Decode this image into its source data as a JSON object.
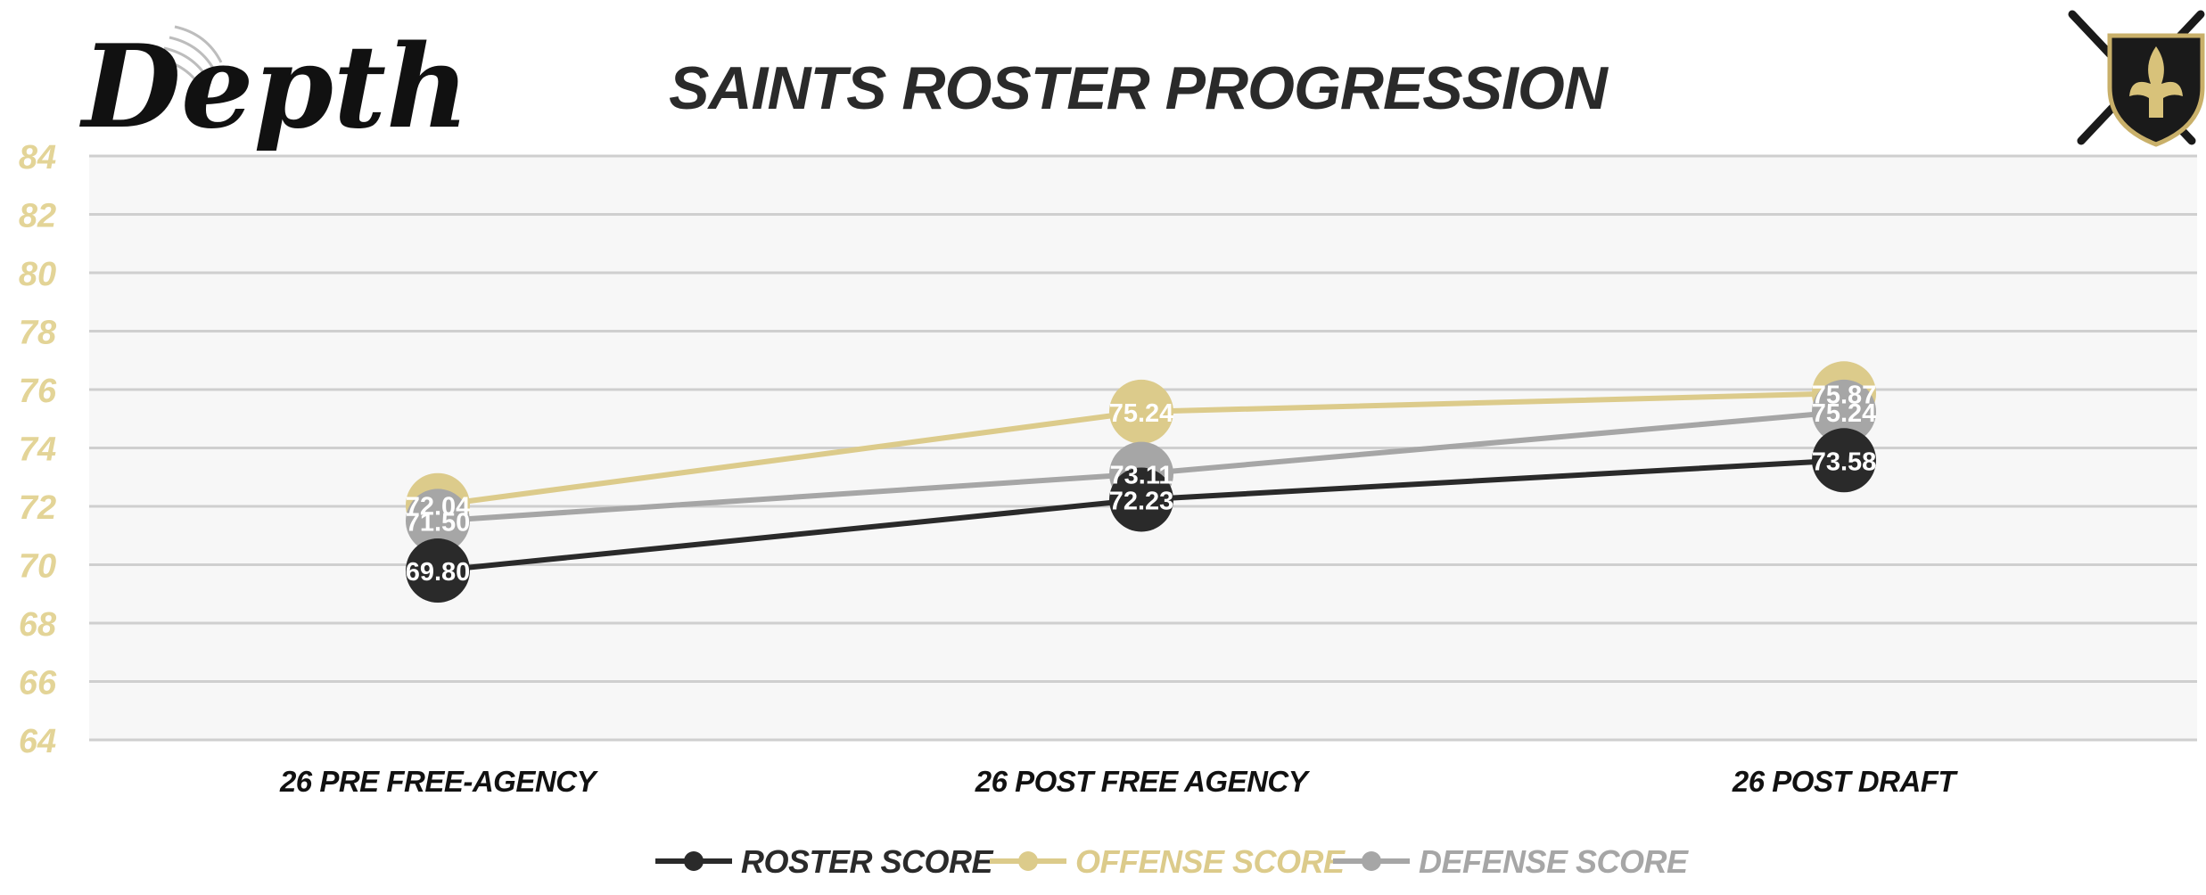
{
  "brand": {
    "logo_text": "Depth"
  },
  "colors": {
    "roster": "#2a2a2a",
    "offense": "#dccb8b",
    "defense": "#a6a6a6",
    "axis_text": "#e3d497",
    "grid": "#cfcfcf",
    "plot_bg": "#f7f7f7",
    "title": "#2a2a2a",
    "category_text": "#111111",
    "label_text": "#ffffff"
  },
  "chart_data": {
    "type": "line",
    "title": "SAINTS ROSTER PROGRESSION",
    "xlabel": "",
    "ylabel": "",
    "categories": [
      "26 PRE FREE-AGENCY",
      "26 POST FREE AGENCY",
      "26 POST DRAFT"
    ],
    "ylim": [
      64,
      84
    ],
    "yticks": [
      84,
      82,
      80,
      78,
      76,
      74,
      72,
      70,
      68,
      66,
      64
    ],
    "grid": true,
    "legend_position": "bottom",
    "series": [
      {
        "name": "ROSTER SCORE",
        "values": [
          69.8,
          72.23,
          73.58
        ],
        "labels": [
          "69.80",
          "72.23",
          "73.58"
        ],
        "color": "#2a2a2a"
      },
      {
        "name": "OFFENSE SCORE",
        "values": [
          72.04,
          75.24,
          75.87
        ],
        "labels": [
          "72.04",
          "75.24",
          "75.87"
        ],
        "color": "#dccb8b"
      },
      {
        "name": "DEFENSE SCORE",
        "values": [
          71.5,
          73.11,
          75.24
        ],
        "labels": [
          "71.50",
          "73.11",
          "75.24"
        ],
        "color": "#a6a6a6"
      }
    ]
  }
}
